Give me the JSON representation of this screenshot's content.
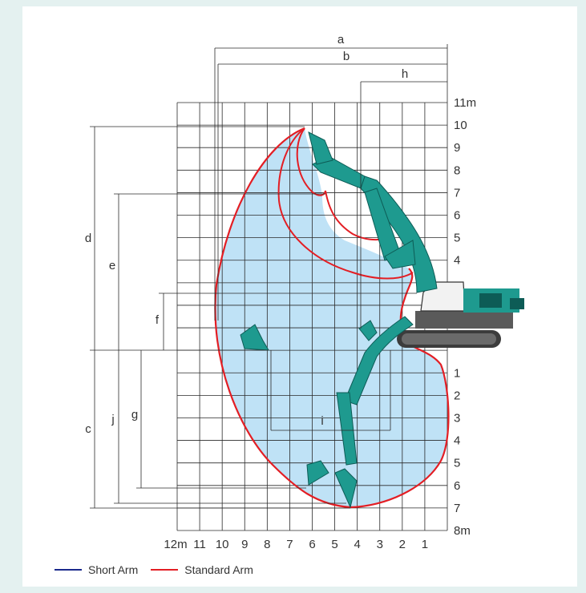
{
  "colors": {
    "background": "#e4f1f0",
    "panel": "#ffffff",
    "reach_fill": "#bfe2f6",
    "short_arm": "#1a2a8c",
    "standard_arm": "#e31e24",
    "machine": "#1e9a8f",
    "machine_dark": "#0d5c56",
    "grid": "#2a2a2a"
  },
  "axes": {
    "x_ticks": [
      "12m",
      "11",
      "10",
      "9",
      "8",
      "7",
      "6",
      "5",
      "4",
      "3",
      "2",
      "1"
    ],
    "y_ticks_above": [
      "11m",
      "10",
      "9",
      "8",
      "7",
      "6",
      "5",
      "4"
    ],
    "y_ticks_below": [
      "1",
      "2",
      "3",
      "4",
      "5",
      "6",
      "7",
      "8m"
    ]
  },
  "dimensions": [
    "a",
    "b",
    "h",
    "d",
    "e",
    "f",
    "c",
    "j",
    "g",
    "i"
  ],
  "legend": [
    {
      "label": "Short Arm",
      "color": "#1a2a8c"
    },
    {
      "label": "Standard Arm",
      "color": "#e31e24"
    }
  ]
}
